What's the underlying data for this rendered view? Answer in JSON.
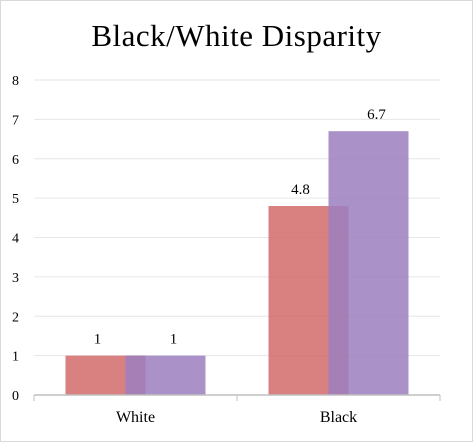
{
  "chart_data": {
    "type": "bar",
    "title": "Black/White Disparity",
    "categories": [
      "White",
      "Black"
    ],
    "series": [
      {
        "values": [
          1,
          4.8
        ],
        "color": "#d26b6b"
      },
      {
        "values": [
          1,
          6.7
        ],
        "color": "#9b7fbf"
      }
    ],
    "data_labels": [
      [
        "1",
        "4.8"
      ],
      [
        "1",
        "6.7"
      ]
    ],
    "ylim": [
      0,
      8
    ],
    "yticks": [
      "0",
      "1",
      "2",
      "3",
      "4",
      "5",
      "6",
      "7",
      "8"
    ],
    "grid": true,
    "legend": "none",
    "overlap": true,
    "bar_opacity": 0.85
  }
}
